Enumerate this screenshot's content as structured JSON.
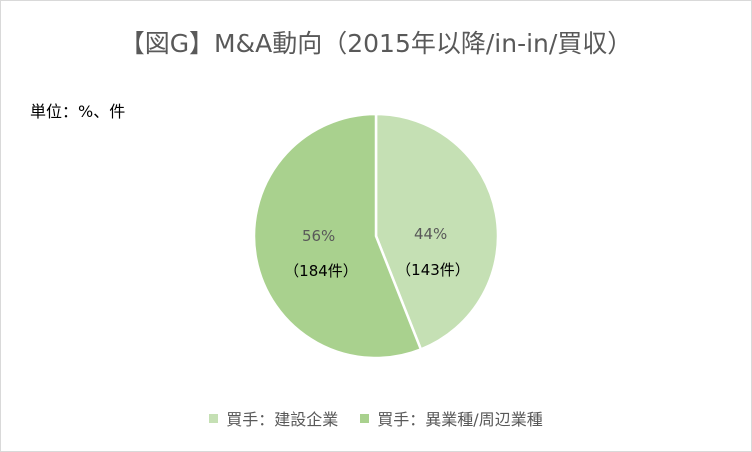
{
  "chart_data": {
    "type": "pie",
    "title": "【図G】M&A動向（2015年以降/in-in/買収）",
    "unit_note": "単位：%、件",
    "slices": [
      {
        "name": "買手：建設企業",
        "percent": 44,
        "count_label": "（143件）",
        "percent_label": "44%",
        "color": "#c5e0b4"
      },
      {
        "name": "買手：異業種/周辺業種",
        "percent": 56,
        "count_label": "（184件）",
        "percent_label": "56%",
        "color": "#a9d18e"
      }
    ],
    "legend_placement": "bottom"
  }
}
